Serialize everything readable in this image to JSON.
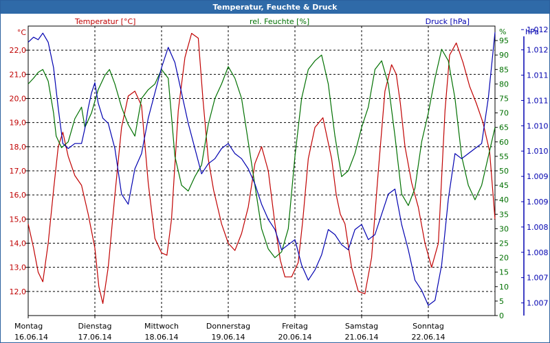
{
  "window": {
    "title": "Temperatur, Feuchte & Druck"
  },
  "colors": {
    "temperature": "#c00000",
    "humidity": "#007000",
    "pressure": "#0000b0",
    "grid": "#000000",
    "title_bar": "#2f6aa8",
    "pressure_axis": "#0000b0"
  },
  "chart_data": {
    "type": "line",
    "title": "Temperatur, Feuchte & Druck",
    "x_days": [
      {
        "weekday": "Montag",
        "date": "16.06.14"
      },
      {
        "weekday": "Dienstag",
        "date": "17.06.14"
      },
      {
        "weekday": "Mittwoch",
        "date": "18.06.14"
      },
      {
        "weekday": "Donnerstag",
        "date": "19.06.14"
      },
      {
        "weekday": "Freitag",
        "date": "20.06.14"
      },
      {
        "weekday": "Samstag",
        "date": "21.06.14"
      },
      {
        "weekday": "Sonntag",
        "date": "22.06.14"
      }
    ],
    "x_range": [
      0,
      7
    ],
    "axes": {
      "temperature": {
        "unit": "°C",
        "label": "Temperatur [°C]",
        "range": [
          11.0,
          23.0
        ],
        "ticks": [
          "12,0",
          "13,0",
          "14,0",
          "15,0",
          "16,0",
          "17,0",
          "18,0",
          "19,0",
          "20,0",
          "21,0",
          "22,0"
        ],
        "tick_values": [
          12,
          13,
          14,
          15,
          16,
          17,
          18,
          19,
          20,
          21,
          22
        ]
      },
      "humidity": {
        "unit": "%",
        "label": "rel. Feuchte [%]",
        "range": [
          0,
          100
        ],
        "ticks": [
          "0",
          "5",
          "10",
          "15",
          "20",
          "25",
          "30",
          "35",
          "40",
          "45",
          "50",
          "55",
          "60",
          "65",
          "70",
          "75",
          "80",
          "85",
          "90",
          "95"
        ],
        "tick_values": [
          0,
          5,
          10,
          15,
          20,
          25,
          30,
          35,
          40,
          45,
          50,
          55,
          60,
          65,
          70,
          75,
          80,
          85,
          90,
          95
        ]
      },
      "pressure": {
        "unit": "hPa",
        "label": "Druck [hPa]",
        "range": [
          1006.6,
          1012.32
        ],
        "ticks": [
          "1.007",
          "1.007",
          "1.008",
          "1.008",
          "1.009",
          "1.009",
          "1.010",
          "1.010",
          "1.011",
          "1.011",
          "1.012",
          "1.012"
        ],
        "tick_values": [
          1006.85,
          1007.35,
          1007.85,
          1008.35,
          1008.85,
          1009.35,
          1009.85,
          1010.35,
          1010.85,
          1011.35,
          1011.85,
          1012.25
        ]
      }
    },
    "series": [
      {
        "name": "Temperatur",
        "axis": "temperature",
        "x": [
          0,
          0.08,
          0.15,
          0.22,
          0.3,
          0.38,
          0.45,
          0.52,
          0.6,
          0.7,
          0.8,
          0.9,
          1.0,
          1.06,
          1.12,
          1.2,
          1.3,
          1.4,
          1.5,
          1.6,
          1.7,
          1.8,
          1.9,
          2.0,
          2.08,
          2.15,
          2.25,
          2.35,
          2.45,
          2.55,
          2.62,
          2.7,
          2.78,
          2.9,
          3.0,
          3.1,
          3.2,
          3.3,
          3.4,
          3.5,
          3.6,
          3.7,
          3.78,
          3.85,
          3.95,
          4.05,
          4.12,
          4.2,
          4.3,
          4.42,
          4.55,
          4.62,
          4.68,
          4.75,
          4.85,
          4.95,
          5.05,
          5.15,
          5.25,
          5.35,
          5.45,
          5.52,
          5.58,
          5.65,
          5.75,
          5.85,
          5.95,
          6.05,
          6.15,
          6.25,
          6.32,
          6.42,
          6.52,
          6.62,
          6.72,
          6.82,
          6.92,
          7.0
        ],
        "values": [
          14.8,
          13.8,
          12.8,
          12.4,
          14.0,
          16.2,
          18.0,
          18.6,
          17.6,
          16.8,
          16.4,
          15.2,
          13.8,
          12.2,
          11.5,
          13.0,
          16.0,
          18.8,
          20.1,
          20.3,
          19.7,
          16.5,
          14.2,
          13.6,
          13.5,
          15.0,
          19.5,
          21.7,
          22.7,
          22.5,
          20.0,
          17.5,
          16.2,
          14.8,
          14.0,
          13.7,
          14.4,
          15.5,
          17.3,
          18.0,
          17.0,
          14.8,
          13.3,
          12.6,
          12.6,
          13.2,
          15.0,
          17.5,
          18.8,
          19.2,
          17.5,
          16.0,
          15.2,
          14.8,
          13.0,
          12.0,
          11.9,
          13.4,
          17.0,
          20.3,
          21.4,
          21.0,
          19.8,
          18.0,
          16.5,
          15.5,
          14.0,
          13.0,
          14.0,
          19.5,
          21.8,
          22.3,
          21.5,
          20.5,
          19.8,
          19.0,
          17.8,
          15.0
        ]
      },
      {
        "name": "rel. Feuchte",
        "axis": "humidity",
        "x": [
          0,
          0.08,
          0.15,
          0.22,
          0.3,
          0.38,
          0.42,
          0.5,
          0.6,
          0.7,
          0.8,
          0.85,
          0.95,
          1.05,
          1.15,
          1.22,
          1.3,
          1.4,
          1.5,
          1.6,
          1.7,
          1.8,
          1.9,
          2.0,
          2.1,
          2.2,
          2.3,
          2.4,
          2.5,
          2.6,
          2.7,
          2.8,
          2.9,
          3.0,
          3.1,
          3.2,
          3.3,
          3.4,
          3.5,
          3.6,
          3.7,
          3.8,
          3.9,
          4.0,
          4.1,
          4.2,
          4.3,
          4.4,
          4.5,
          4.6,
          4.7,
          4.8,
          4.9,
          5.0,
          5.1,
          5.2,
          5.3,
          5.4,
          5.5,
          5.6,
          5.7,
          5.8,
          5.9,
          6.0,
          6.1,
          6.2,
          6.3,
          6.4,
          6.5,
          6.6,
          6.7,
          6.8,
          6.9,
          7.0
        ],
        "values": [
          80,
          82,
          84,
          85,
          81,
          70,
          62,
          58,
          60,
          68,
          72,
          65,
          70,
          78,
          83,
          85,
          80,
          72,
          66,
          62,
          75,
          78,
          80,
          85,
          82,
          55,
          45,
          43,
          48,
          52,
          66,
          75,
          80,
          86,
          82,
          75,
          60,
          45,
          30,
          23,
          20,
          22,
          30,
          55,
          75,
          85,
          88,
          90,
          80,
          62,
          48,
          50,
          56,
          65,
          72,
          85,
          88,
          80,
          62,
          42,
          38,
          44,
          60,
          70,
          82,
          92,
          88,
          75,
          55,
          45,
          40,
          45,
          55,
          65
        ]
      },
      {
        "name": "Druck",
        "axis": "pressure",
        "x": [
          0,
          0.08,
          0.15,
          0.22,
          0.3,
          0.38,
          0.45,
          0.52,
          0.6,
          0.7,
          0.8,
          0.85,
          0.9,
          0.95,
          1.0,
          1.05,
          1.12,
          1.2,
          1.3,
          1.4,
          1.5,
          1.6,
          1.7,
          1.8,
          1.9,
          2.0,
          2.1,
          2.2,
          2.3,
          2.4,
          2.5,
          2.6,
          2.7,
          2.8,
          2.9,
          3.0,
          3.1,
          3.2,
          3.3,
          3.4,
          3.5,
          3.6,
          3.7,
          3.8,
          3.9,
          4.0,
          4.1,
          4.2,
          4.3,
          4.4,
          4.5,
          4.6,
          4.7,
          4.8,
          4.9,
          5.0,
          5.1,
          5.2,
          5.3,
          5.4,
          5.5,
          5.6,
          5.7,
          5.8,
          5.9,
          6.0,
          6.1,
          6.2,
          6.3,
          6.4,
          6.5,
          6.6,
          6.7,
          6.8,
          6.9,
          7.0
        ],
        "values": [
          1012.0,
          1012.1,
          1012.05,
          1012.18,
          1012.0,
          1011.5,
          1010.7,
          1010.0,
          1009.9,
          1010.0,
          1010.0,
          1010.3,
          1010.7,
          1011.0,
          1011.2,
          1010.8,
          1010.5,
          1010.4,
          1009.9,
          1009.0,
          1008.8,
          1009.5,
          1009.8,
          1010.5,
          1011.0,
          1011.5,
          1011.9,
          1011.6,
          1011.0,
          1010.4,
          1009.9,
          1009.4,
          1009.6,
          1009.7,
          1009.9,
          1010.0,
          1009.8,
          1009.7,
          1009.5,
          1009.2,
          1008.8,
          1008.5,
          1008.3,
          1007.9,
          1008.0,
          1008.1,
          1007.6,
          1007.3,
          1007.5,
          1007.8,
          1008.3,
          1008.2,
          1008.0,
          1007.9,
          1008.3,
          1008.4,
          1008.1,
          1008.2,
          1008.6,
          1009.0,
          1009.1,
          1008.4,
          1007.9,
          1007.3,
          1007.1,
          1006.8,
          1006.9,
          1007.6,
          1008.9,
          1009.8,
          1009.7,
          1009.8,
          1009.9,
          1010.0,
          1010.9,
          1012.2
        ]
      }
    ]
  }
}
